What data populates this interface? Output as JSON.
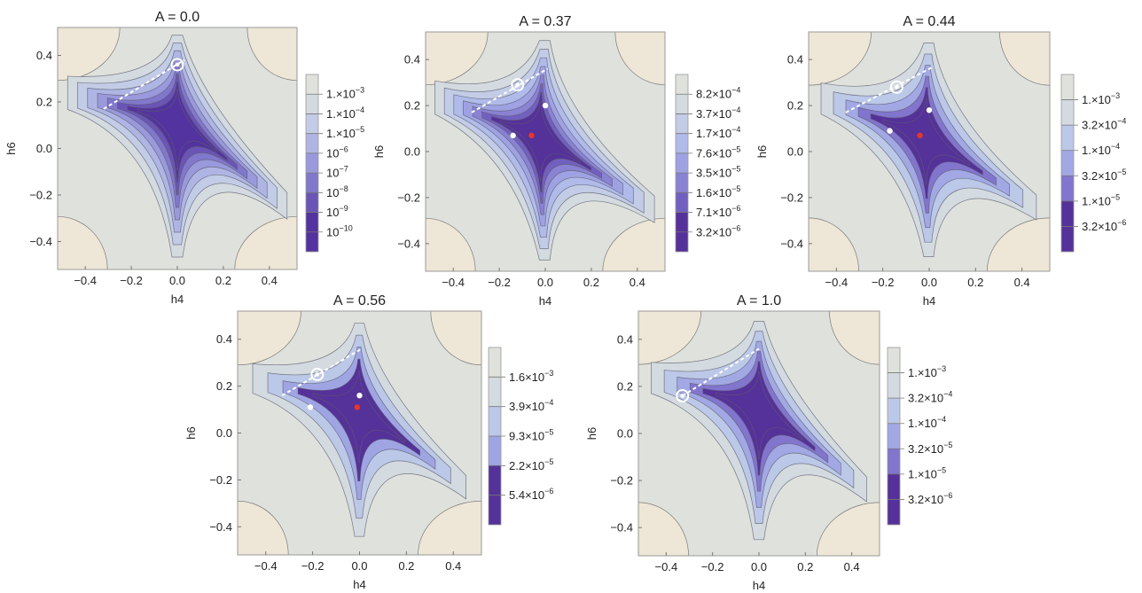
{
  "figure_title": "",
  "chart_data": [
    {
      "type": "heatmap",
      "title": "A = 0.0",
      "xlabel": "h4",
      "ylabel": "h6",
      "xlim": [
        -0.52,
        0.52
      ],
      "ylim": [
        -0.52,
        0.52
      ],
      "xticks": [
        "−0.4",
        "−0.2",
        "0.0",
        "0.2",
        "0.4"
      ],
      "yticks": [
        "0.4",
        "0.2",
        "0.0",
        "−0.2",
        "−0.4"
      ],
      "legend": [
        {
          "mant": "1.",
          "exp": "−3",
          "color": "#dfe2dc"
        },
        {
          "mant": "1.",
          "exp": "−4",
          "color": "#d3dae0"
        },
        {
          "mant": "1.",
          "exp": "−5",
          "color": "#c2cce6"
        },
        {
          "mant": "",
          "exp": "−6",
          "color": "#afb5e3"
        },
        {
          "mant": "",
          "exp": "−7",
          "color": "#9a99dc"
        },
        {
          "mant": "",
          "exp": "−8",
          "color": "#8178cc"
        },
        {
          "mant": "",
          "exp": "−9",
          "color": "#6a55b6"
        },
        {
          "mant": "",
          "exp": "−10",
          "color": "#53339f"
        }
      ],
      "dashed_line": [
        [
          -0.32,
          0.17
        ],
        [
          0.03,
          0.38
        ]
      ],
      "circled_point": [
        0.0,
        0.36
      ],
      "white_points": [],
      "red_points": []
    },
    {
      "type": "heatmap",
      "title": "A = 0.37",
      "xlabel": "h4",
      "ylabel": "h6",
      "xlim": [
        -0.52,
        0.52
      ],
      "ylim": [
        -0.52,
        0.52
      ],
      "xticks": [
        "−0.4",
        "−0.2",
        "0.0",
        "0.2",
        "0.4"
      ],
      "yticks": [
        "0.4",
        "0.2",
        "0.0",
        "−0.2",
        "−0.4"
      ],
      "legend": [
        {
          "mant": "8.2",
          "exp": "−4",
          "color": "#dfe2dc"
        },
        {
          "mant": "3.7",
          "exp": "−4",
          "color": "#d3dae0"
        },
        {
          "mant": "1.7",
          "exp": "−4",
          "color": "#c2cce6"
        },
        {
          "mant": "7.6",
          "exp": "−5",
          "color": "#b0bbea"
        },
        {
          "mant": "3.5",
          "exp": "−5",
          "color": "#9fa2e2"
        },
        {
          "mant": "1.6",
          "exp": "−5",
          "color": "#8a82d3"
        },
        {
          "mant": "7.1",
          "exp": "−6",
          "color": "#7260c0"
        },
        {
          "mant": "3.2",
          "exp": "−6",
          "color": "#55319a"
        }
      ],
      "dashed_line": [
        [
          -0.32,
          0.17
        ],
        [
          0.01,
          0.36
        ]
      ],
      "circled_point": [
        -0.12,
        0.29
      ],
      "white_points": [
        [
          -0.14,
          0.07
        ],
        [
          0.0,
          0.2
        ]
      ],
      "red_points": [
        [
          -0.06,
          0.07
        ]
      ]
    },
    {
      "type": "heatmap",
      "title": "A = 0.44",
      "xlabel": "h4",
      "ylabel": "h6",
      "xlim": [
        -0.52,
        0.52
      ],
      "ylim": [
        -0.52,
        0.52
      ],
      "xticks": [
        "−0.4",
        "−0.2",
        "0.0",
        "0.2",
        "0.4"
      ],
      "yticks": [
        "0.4",
        "0.2",
        "0.0",
        "−0.2",
        "−0.4"
      ],
      "legend": [
        {
          "mant": "1.",
          "exp": "−3",
          "color": "#dfe2dc"
        },
        {
          "mant": "3.2",
          "exp": "−4",
          "color": "#d3dae0"
        },
        {
          "mant": "1.",
          "exp": "−4",
          "color": "#bcc8e8"
        },
        {
          "mant": "3.2",
          "exp": "−5",
          "color": "#a1a8e4"
        },
        {
          "mant": "1.",
          "exp": "−5",
          "color": "#8275cd"
        },
        {
          "mant": "3.2",
          "exp": "−6",
          "color": "#55319a"
        }
      ],
      "dashed_line": [
        [
          -0.36,
          0.17
        ],
        [
          0.02,
          0.37
        ]
      ],
      "circled_point": [
        -0.14,
        0.28
      ],
      "white_points": [
        [
          -0.17,
          0.09
        ],
        [
          0.0,
          0.18
        ]
      ],
      "red_points": [
        [
          -0.04,
          0.07
        ]
      ]
    },
    {
      "type": "heatmap",
      "title": "A = 0.56",
      "xlabel": "h4",
      "ylabel": "h6",
      "xlim": [
        -0.52,
        0.52
      ],
      "ylim": [
        -0.52,
        0.52
      ],
      "xticks": [
        "−0.4",
        "−0.2",
        "0.0",
        "0.2",
        "0.4"
      ],
      "yticks": [
        "0.4",
        "0.2",
        "0.0",
        "−0.2",
        "−0.4"
      ],
      "legend": [
        {
          "mant": "1.6",
          "exp": "−3",
          "color": "#dfe2dc"
        },
        {
          "mant": "3.9",
          "exp": "−4",
          "color": "#d3dae0"
        },
        {
          "mant": "9.3",
          "exp": "−5",
          "color": "#bcc8e8"
        },
        {
          "mant": "2.2",
          "exp": "−5",
          "color": "#9fa4e3"
        },
        {
          "mant": "5.4",
          "exp": "−6",
          "color": "#55319a"
        }
      ],
      "dashed_line": [
        [
          -0.33,
          0.16
        ],
        [
          0.01,
          0.36
        ]
      ],
      "circled_point": [
        -0.18,
        0.25
      ],
      "white_points": [
        [
          -0.21,
          0.11
        ],
        [
          0.0,
          0.16
        ]
      ],
      "red_points": [
        [
          -0.01,
          0.11
        ]
      ]
    },
    {
      "type": "heatmap",
      "title": "A = 1.0",
      "xlabel": "h4",
      "ylabel": "h6",
      "xlim": [
        -0.52,
        0.52
      ],
      "ylim": [
        -0.52,
        0.52
      ],
      "xticks": [
        "−0.4",
        "−0.2",
        "0.0",
        "0.2",
        "0.4"
      ],
      "yticks": [
        "0.4",
        "0.2",
        "0.0",
        "−0.2",
        "−0.4"
      ],
      "legend": [
        {
          "mant": "1.",
          "exp": "−3",
          "color": "#dfe2dc"
        },
        {
          "mant": "3.2",
          "exp": "−4",
          "color": "#d3dae0"
        },
        {
          "mant": "1.",
          "exp": "−4",
          "color": "#bcc8e8"
        },
        {
          "mant": "3.2",
          "exp": "−5",
          "color": "#a1a8e4"
        },
        {
          "mant": "1.",
          "exp": "−5",
          "color": "#8275cd"
        },
        {
          "mant": "3.2",
          "exp": "−6",
          "color": "#55319a"
        }
      ],
      "dashed_line": [
        [
          -0.33,
          0.16
        ],
        [
          0.0,
          0.36
        ]
      ],
      "circled_point": [
        -0.33,
        0.16
      ],
      "white_points": [],
      "red_points": []
    }
  ]
}
